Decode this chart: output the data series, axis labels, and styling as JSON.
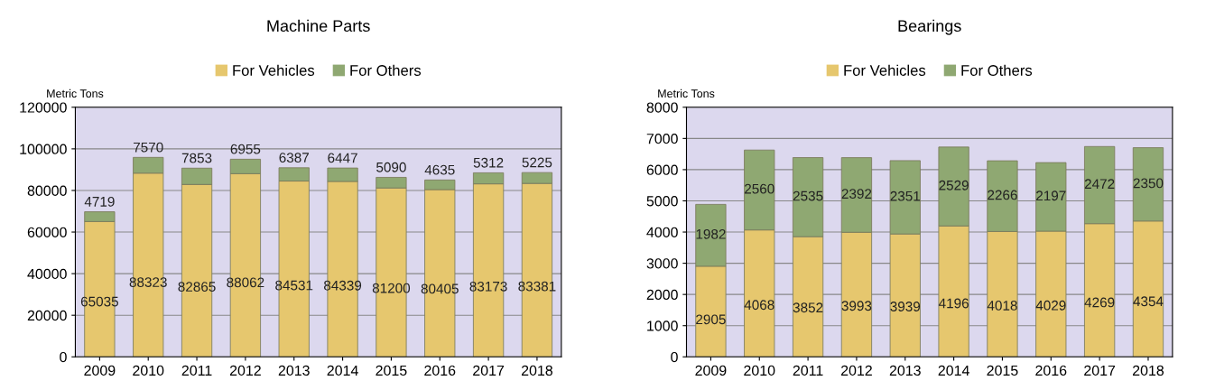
{
  "chart_data": [
    {
      "type": "bar",
      "title": "Machine Parts",
      "ylabel": "Metric Tons",
      "stacked": true,
      "data_labels": true,
      "grid": "y",
      "legend": "top",
      "categories": [
        "2009",
        "2010",
        "2011",
        "2012",
        "2013",
        "2014",
        "2015",
        "2016",
        "2017",
        "2018"
      ],
      "ylim": [
        0,
        120000
      ],
      "yticks": [
        0,
        20000,
        40000,
        60000,
        80000,
        100000,
        120000
      ],
      "series": [
        {
          "name": "For Vehicles",
          "color": "#e6c76e",
          "values": [
            65035,
            88323,
            82865,
            88062,
            84531,
            84339,
            81200,
            80405,
            83173,
            83381
          ]
        },
        {
          "name": "For Others",
          "color": "#8fa872",
          "values": [
            4719,
            7570,
            7853,
            6955,
            6387,
            6447,
            5090,
            4635,
            5312,
            5225
          ]
        }
      ]
    },
    {
      "type": "bar",
      "title": "Bearings",
      "ylabel": "Metric Tons",
      "stacked": true,
      "data_labels": true,
      "grid": "y",
      "legend": "top",
      "categories": [
        "2009",
        "2010",
        "2011",
        "2012",
        "2013",
        "2014",
        "2015",
        "2016",
        "2017",
        "2018"
      ],
      "ylim": [
        0,
        8000
      ],
      "yticks": [
        0,
        1000,
        2000,
        3000,
        4000,
        5000,
        6000,
        7000,
        8000
      ],
      "series": [
        {
          "name": "For Vehicles",
          "color": "#e6c76e",
          "values": [
            2905,
            4068,
            3852,
            3993,
            3939,
            4196,
            4018,
            4029,
            4269,
            4354
          ]
        },
        {
          "name": "For Others",
          "color": "#8fa872",
          "values": [
            1982,
            2560,
            2535,
            2392,
            2351,
            2529,
            2266,
            2197,
            2472,
            2350
          ]
        }
      ]
    }
  ]
}
